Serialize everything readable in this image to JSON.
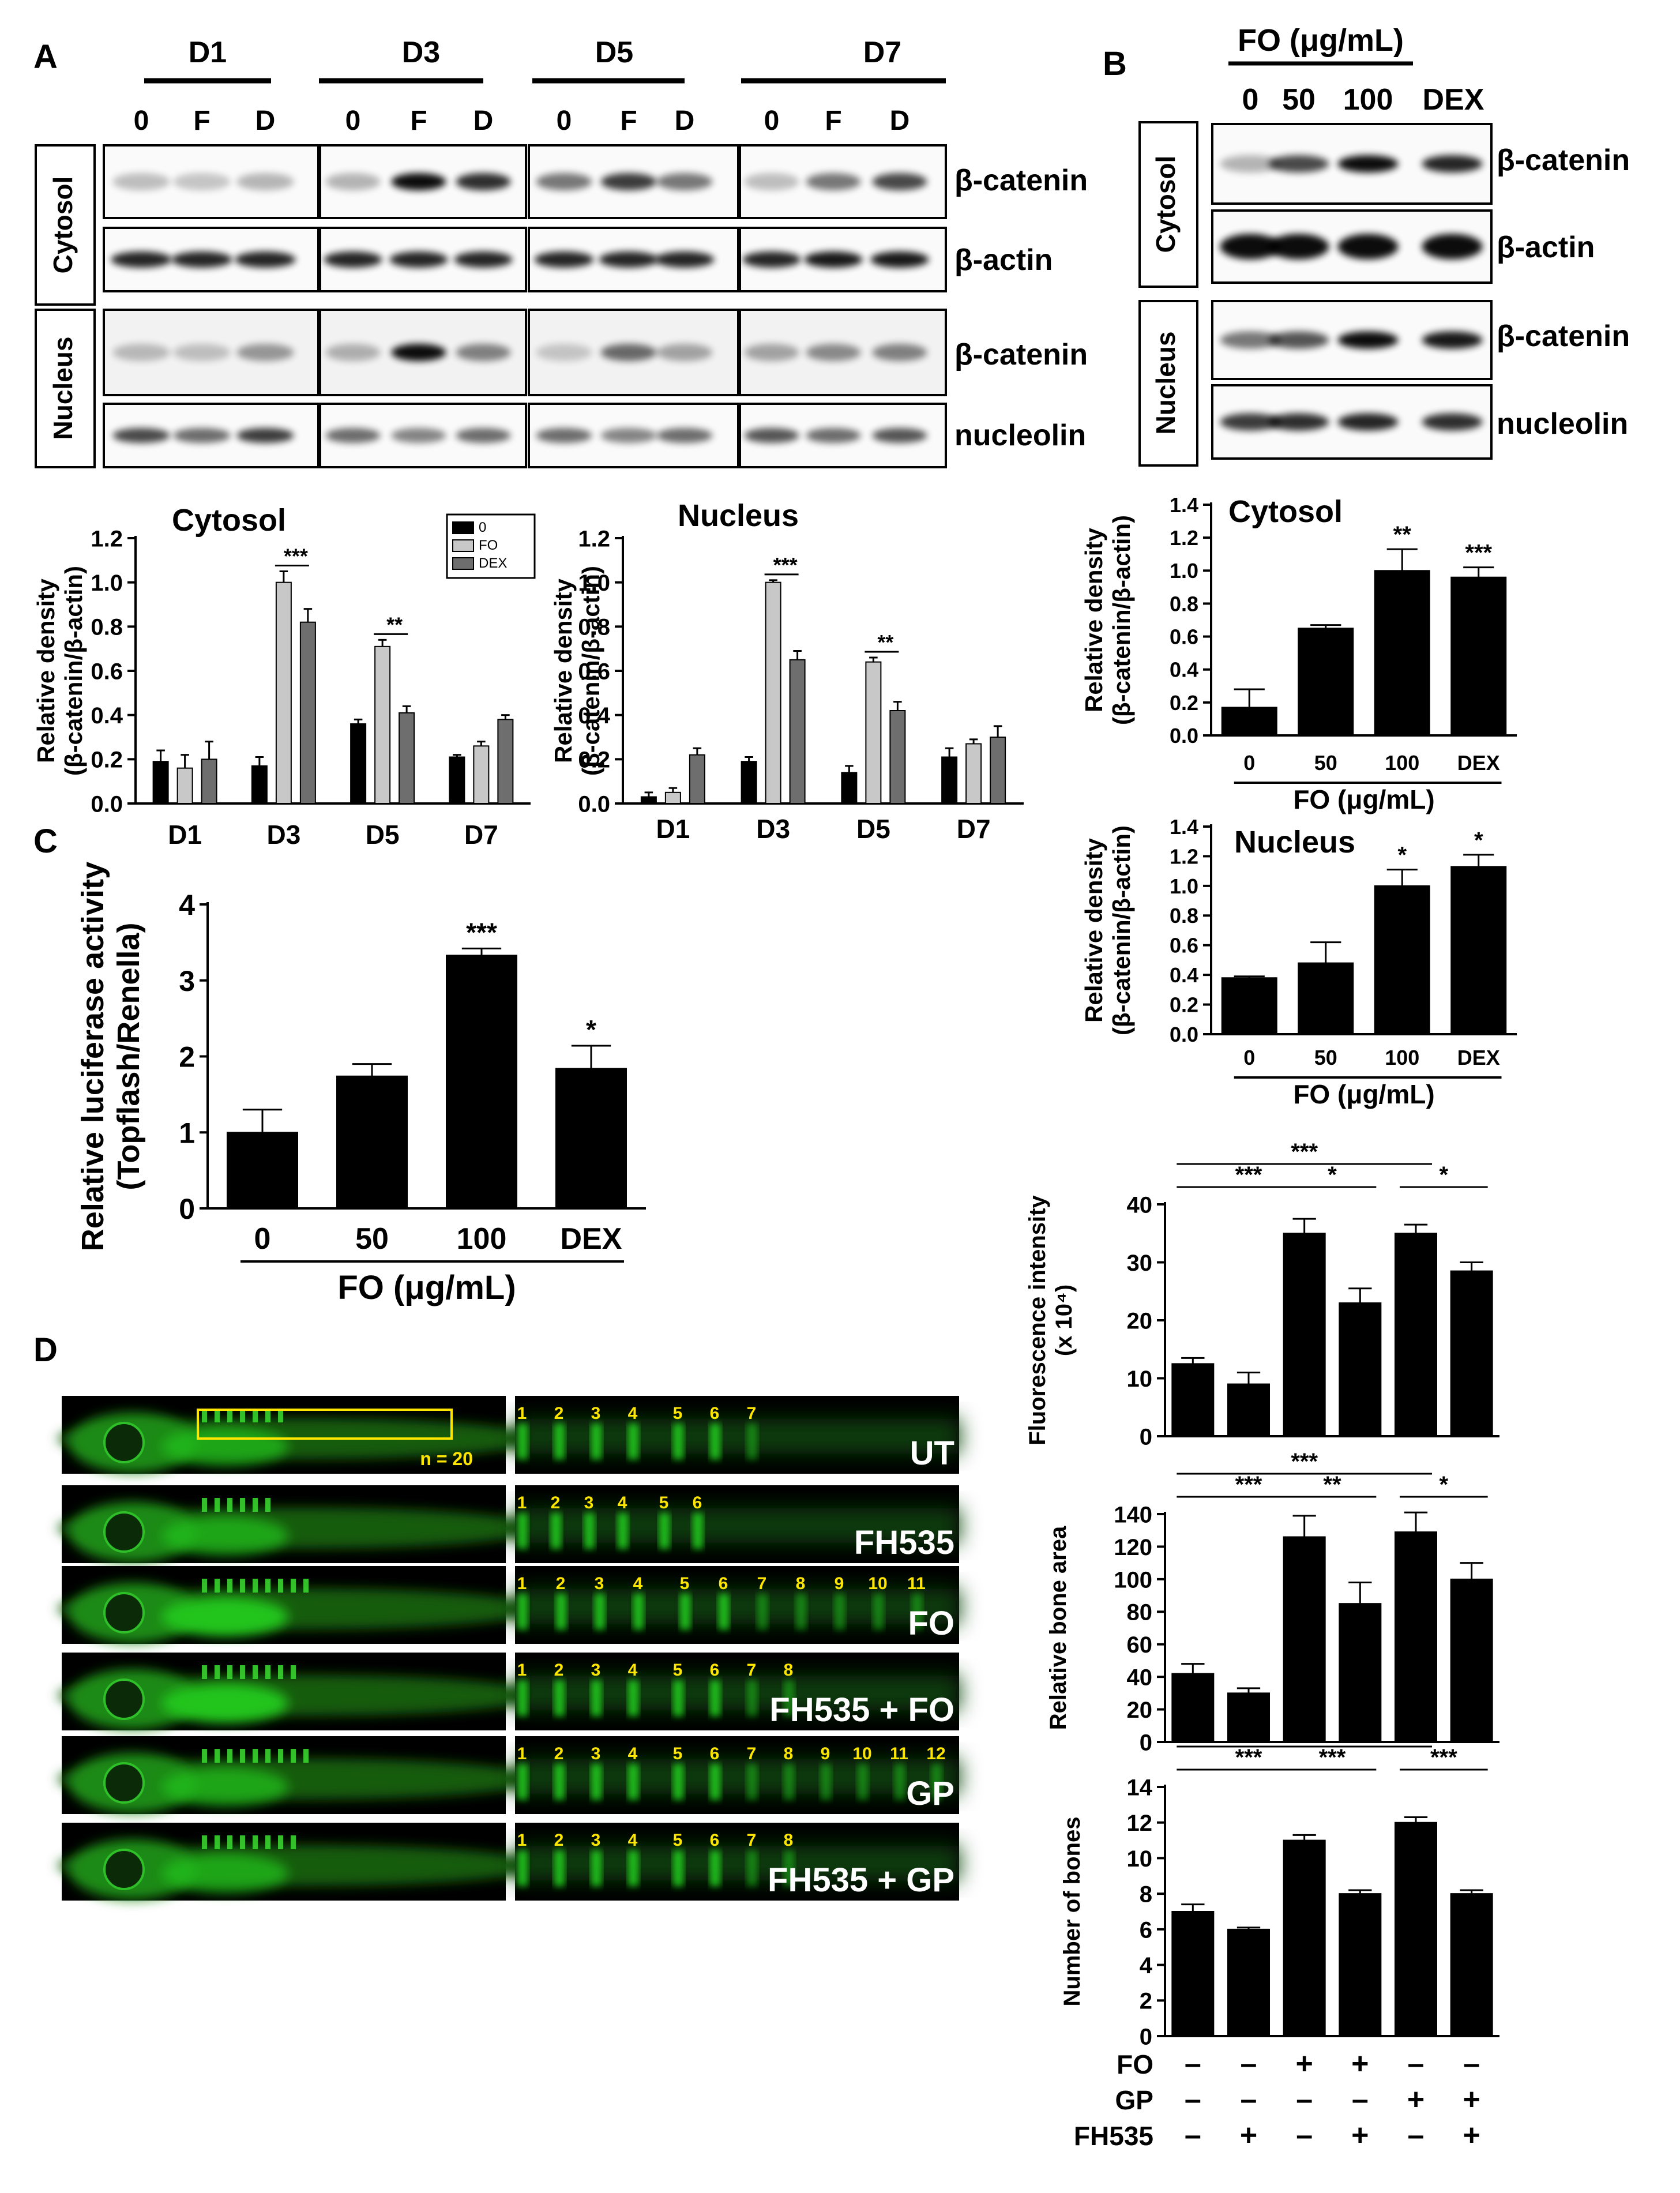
{
  "panels": {
    "A": "A",
    "B": "B",
    "C": "C",
    "D": "D"
  },
  "panel_a_blot": {
    "days": [
      "D1",
      "D3",
      "D5",
      "D7"
    ],
    "lanes": [
      "0",
      "F",
      "D"
    ],
    "fraction_labels": [
      "Cytosol",
      "Nucleus"
    ],
    "band_labels": [
      "β-catenin",
      "β-actin",
      "β-catenin",
      "nucleolin"
    ]
  },
  "panel_b_blot": {
    "header": "FO (μg/mL)",
    "lanes": [
      "0",
      "50",
      "100",
      "DEX"
    ],
    "fraction_labels": [
      "Cytosol",
      "Nucleus"
    ],
    "band_labels": [
      "β-catenin",
      "β-actin",
      "β-catenin",
      "nucleolin"
    ]
  },
  "zebrafish": {
    "rows": [
      {
        "label": "UT",
        "numbers": [
          "1",
          "2",
          "3",
          "4",
          "5",
          "6",
          "7"
        ]
      },
      {
        "label": "FH535",
        "numbers": [
          "1",
          "2",
          "3",
          "4",
          "5",
          "6"
        ]
      },
      {
        "label": "FO",
        "numbers": [
          "1",
          "2",
          "3",
          "4",
          "5",
          "6",
          "7",
          "8",
          "9",
          "10",
          "11"
        ]
      },
      {
        "label": "FH535 + FO",
        "numbers": [
          "1",
          "2",
          "3",
          "4",
          "5",
          "6",
          "7",
          "8"
        ]
      },
      {
        "label": "GP",
        "numbers": [
          "1",
          "2",
          "3",
          "4",
          "5",
          "6",
          "7",
          "8",
          "9",
          "10",
          "11",
          "12"
        ]
      },
      {
        "label": "FH535 + GP",
        "numbers": [
          "1",
          "2",
          "3",
          "4",
          "5",
          "6",
          "7",
          "8"
        ]
      }
    ],
    "n_label": "n = 20"
  },
  "treatment_table": {
    "rows": [
      {
        "label": "FO",
        "signs": [
          "–",
          "–",
          "+",
          "+",
          "–",
          "–"
        ]
      },
      {
        "label": "GP",
        "signs": [
          "–",
          "–",
          "–",
          "–",
          "+",
          "+"
        ]
      },
      {
        "label": "FH535",
        "signs": [
          "–",
          "+",
          "–",
          "+",
          "–",
          "+"
        ]
      }
    ]
  },
  "colors": {
    "black": "#000000",
    "light_grey": "#c8c8c8",
    "dark_grey": "#6e6e6e",
    "fish_green": "#22c51e",
    "marker_yellow": "#ffe600"
  },
  "chart_data": [
    {
      "id": "a_cytosol",
      "type": "bar",
      "title": "Cytosol",
      "ylabel_lines": [
        "Relative density",
        "(β-catenin/β-actin)"
      ],
      "categories": [
        "D1",
        "D3",
        "D5",
        "D7"
      ],
      "ylim": [
        0,
        1.2
      ],
      "yticks": [
        "0.0",
        "0.2",
        "0.4",
        "0.6",
        "0.8",
        "1.0",
        "1.2"
      ],
      "legend": [
        "0",
        "FO",
        "DEX"
      ],
      "legend_position": "top-right",
      "series": [
        {
          "name": "0",
          "values": [
            0.19,
            0.17,
            0.36,
            0.21
          ],
          "errors": [
            0.05,
            0.04,
            0.02,
            0.01
          ]
        },
        {
          "name": "FO",
          "values": [
            0.16,
            1.0,
            0.71,
            0.26
          ],
          "errors": [
            0.06,
            0.05,
            0.03,
            0.02
          ]
        },
        {
          "name": "DEX",
          "values": [
            0.2,
            0.82,
            0.41,
            0.38
          ],
          "errors": [
            0.08,
            0.06,
            0.03,
            0.02
          ]
        }
      ],
      "significance": [
        {
          "category": "D3",
          "text": "***"
        },
        {
          "category": "D5",
          "text": "**"
        }
      ]
    },
    {
      "id": "a_nucleus",
      "type": "bar",
      "title": "Nucleus",
      "ylabel_lines": [
        "Relative density",
        "(β-catenin/β-actin)"
      ],
      "categories": [
        "D1",
        "D3",
        "D5",
        "D7"
      ],
      "ylim": [
        0,
        1.2
      ],
      "yticks": [
        "0.0",
        "0.2",
        "0.4",
        "0.6",
        "0.8",
        "1.0",
        "1.2"
      ],
      "series": [
        {
          "name": "0",
          "values": [
            0.03,
            0.19,
            0.14,
            0.21
          ],
          "errors": [
            0.02,
            0.02,
            0.03,
            0.04
          ]
        },
        {
          "name": "FO",
          "values": [
            0.05,
            1.0,
            0.64,
            0.27
          ],
          "errors": [
            0.02,
            0.01,
            0.02,
            0.02
          ]
        },
        {
          "name": "DEX",
          "values": [
            0.22,
            0.65,
            0.42,
            0.3
          ],
          "errors": [
            0.03,
            0.04,
            0.04,
            0.05
          ]
        }
      ],
      "significance": [
        {
          "category": "D3",
          "text": "***"
        },
        {
          "category": "D5",
          "text": "**"
        }
      ]
    },
    {
      "id": "b_cytosol",
      "type": "bar",
      "title": "Cytosol",
      "ylabel_lines": [
        "Relative density",
        "(β-catenin/β-actin)"
      ],
      "categories": [
        "0",
        "50",
        "100",
        "DEX"
      ],
      "xlabel": "FO (μg/mL)",
      "ylim": [
        0,
        1.4
      ],
      "yticks": [
        "0.0",
        "0.2",
        "0.4",
        "0.6",
        "0.8",
        "1.0",
        "1.2",
        "1.4"
      ],
      "values": [
        0.17,
        0.65,
        1.0,
        0.96
      ],
      "errors": [
        0.11,
        0.02,
        0.13,
        0.06
      ],
      "stars": [
        "",
        "",
        "**",
        "***"
      ]
    },
    {
      "id": "b_nucleus",
      "type": "bar",
      "title": "Nucleus",
      "ylabel_lines": [
        "Relative density",
        "(β-catenin/β-actin)"
      ],
      "categories": [
        "0",
        "50",
        "100",
        "DEX"
      ],
      "xlabel": "FO (μg/mL)",
      "ylim": [
        0,
        1.4
      ],
      "yticks": [
        "0.0",
        "0.2",
        "0.4",
        "0.6",
        "0.8",
        "1.0",
        "1.2",
        "1.4"
      ],
      "values": [
        0.38,
        0.48,
        1.0,
        1.13
      ],
      "errors": [
        0.01,
        0.14,
        0.11,
        0.08
      ],
      "stars": [
        "",
        "",
        "*",
        "*"
      ]
    },
    {
      "id": "c_luciferase",
      "type": "bar",
      "ylabel_lines": [
        "Relative luciferase activity",
        "(Topflash/Renella)"
      ],
      "categories": [
        "0",
        "50",
        "100",
        "DEX"
      ],
      "xlabel": "FO (μg/mL)",
      "ylim": [
        0,
        4
      ],
      "yticks": [
        "0",
        "1",
        "2",
        "3",
        "4"
      ],
      "values": [
        1.0,
        1.74,
        3.33,
        1.84
      ],
      "errors": [
        0.3,
        0.16,
        0.09,
        0.3
      ],
      "stars": [
        "",
        "",
        "***",
        "*"
      ]
    },
    {
      "id": "d_fluorescence",
      "type": "bar",
      "ylabel_lines": [
        "Fluorescence intensity",
        "(x 10⁴)"
      ],
      "ylim": [
        0,
        40
      ],
      "yticks": [
        "0",
        "10",
        "20",
        "30",
        "40"
      ],
      "values": [
        12.5,
        9,
        35,
        23,
        35,
        28.5
      ],
      "errors": [
        1.0,
        2.0,
        2.5,
        2.5,
        1.5,
        1.5
      ],
      "brackets": [
        {
          "from": 0,
          "to": 4,
          "level": 0,
          "text": "***"
        },
        {
          "from": 4,
          "to": 5,
          "level": 1,
          "text": "*"
        },
        {
          "from": 0,
          "to": 2,
          "level": 1,
          "text": "***"
        },
        {
          "from": 2,
          "to": 3,
          "level": 1,
          "text": "*"
        }
      ]
    },
    {
      "id": "d_bone_area",
      "type": "bar",
      "ylabel_lines": [
        "Relative bone area"
      ],
      "ylim": [
        0,
        140
      ],
      "yticks": [
        "0",
        "20",
        "40",
        "60",
        "80",
        "100",
        "120",
        "140"
      ],
      "values": [
        42,
        30,
        126,
        85,
        129,
        100
      ],
      "errors": [
        6,
        3,
        13,
        13,
        12,
        10
      ],
      "brackets": [
        {
          "from": 0,
          "to": 4,
          "level": 0,
          "text": "***"
        },
        {
          "from": 4,
          "to": 5,
          "level": 1,
          "text": "*"
        },
        {
          "from": 0,
          "to": 2,
          "level": 1,
          "text": "***"
        },
        {
          "from": 2,
          "to": 3,
          "level": 1,
          "text": "**"
        }
      ]
    },
    {
      "id": "d_bone_number",
      "type": "bar",
      "ylabel_lines": [
        "Number of bones"
      ],
      "ylim": [
        0,
        14
      ],
      "yticks": [
        "0",
        "2",
        "4",
        "6",
        "8",
        "10",
        "12",
        "14"
      ],
      "values": [
        7,
        6,
        11,
        8,
        12,
        8
      ],
      "errors": [
        0.4,
        0.1,
        0.3,
        0.2,
        0.3,
        0.2
      ],
      "brackets": [
        {
          "from": 0,
          "to": 4,
          "level": 0,
          "text": "***"
        },
        {
          "from": 4,
          "to": 5,
          "level": 1,
          "text": "***"
        },
        {
          "from": 0,
          "to": 2,
          "level": 1,
          "text": "***"
        },
        {
          "from": 2,
          "to": 3,
          "level": 1,
          "text": "***"
        }
      ]
    }
  ]
}
